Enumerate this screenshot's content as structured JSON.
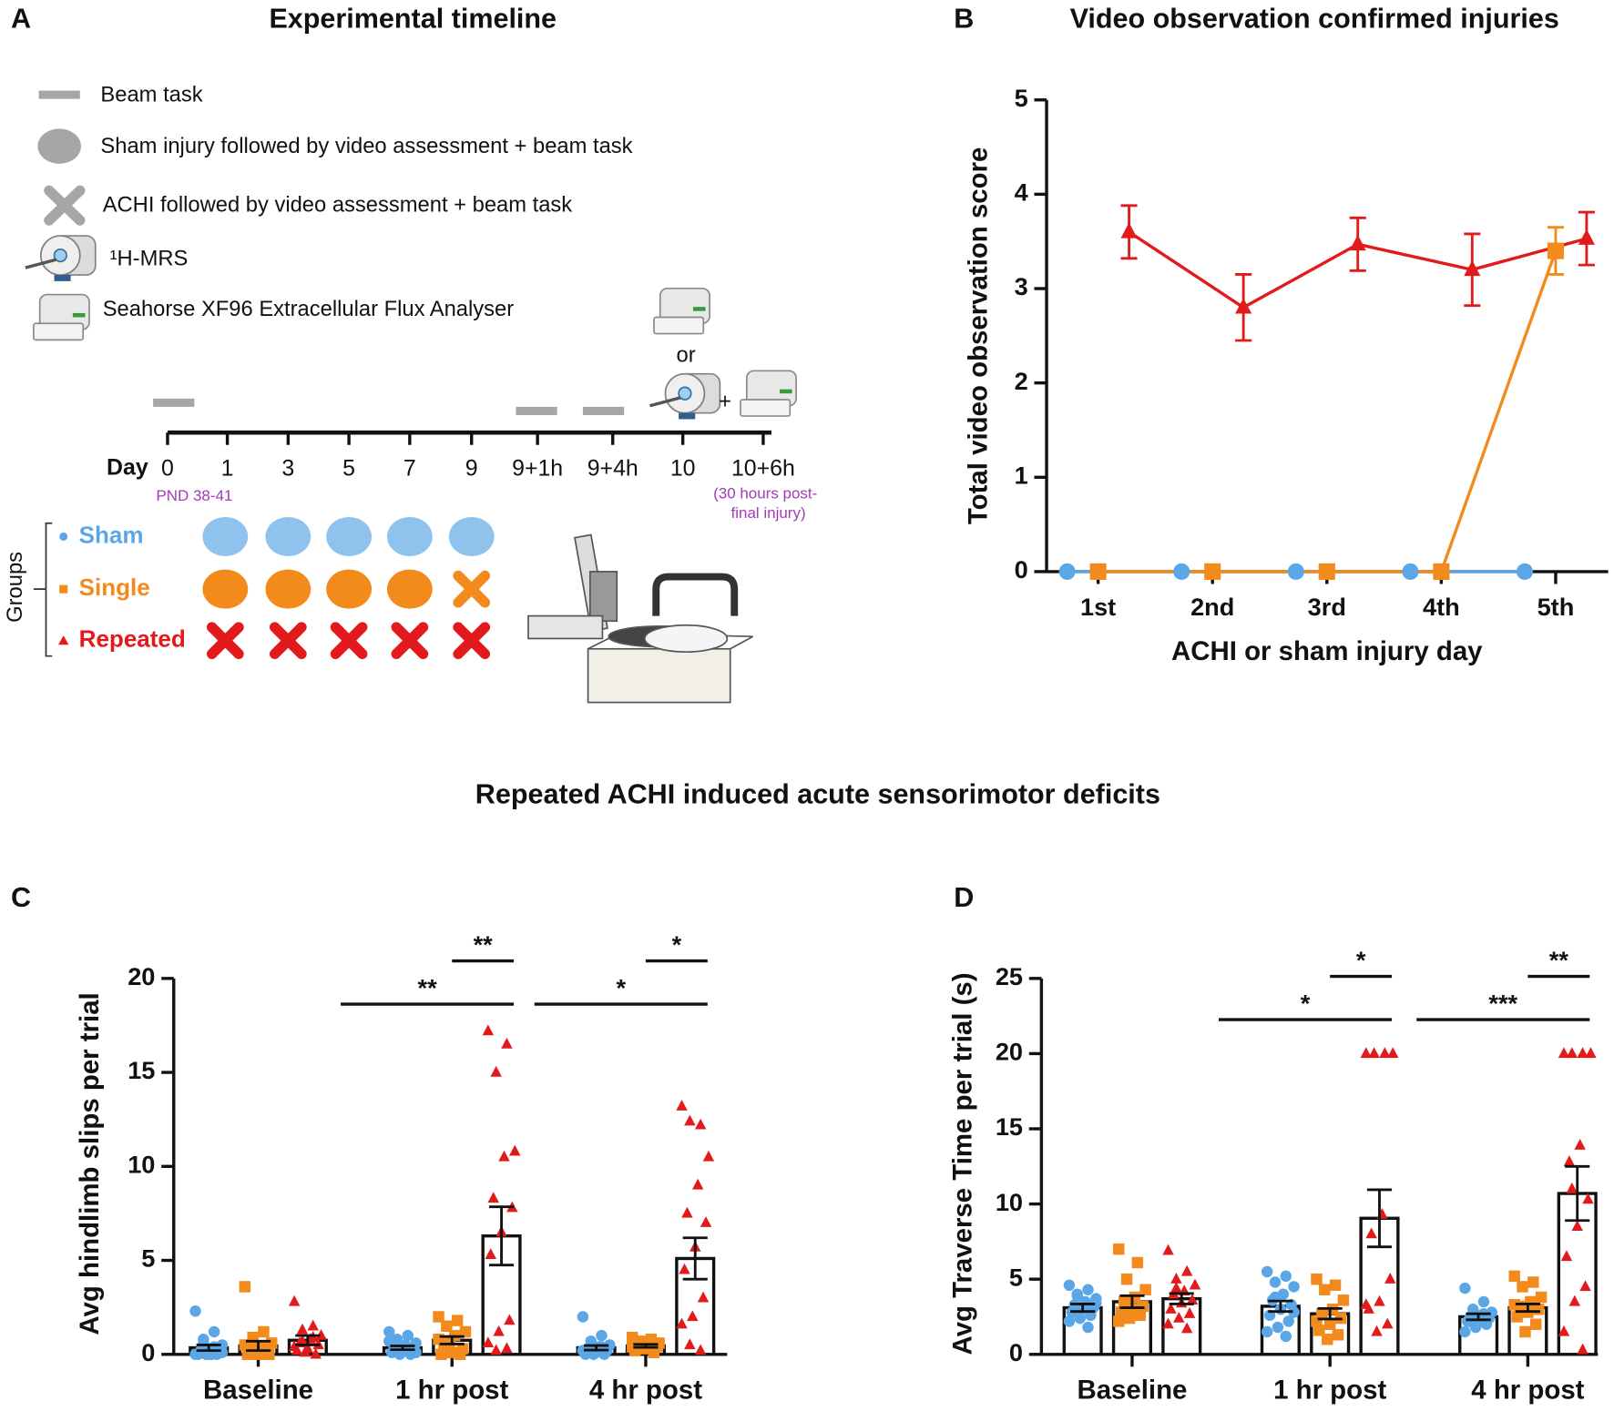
{
  "panel_a": {
    "panel": "A",
    "title": "Experimental timeline",
    "legend": [
      "Beam task",
      "Sham injury followed by video assessment + beam task",
      "ACHI followed by video assessment + beam task",
      "¹H-MRS",
      "Seahorse XF96 Extracellular Flux Analyser"
    ],
    "or": "or",
    "plus": "+",
    "day_label": "Day",
    "days": [
      "0",
      "1",
      "3",
      "5",
      "7",
      "9",
      "9+1h",
      "9+4h",
      "10",
      "10+6h"
    ],
    "day0_note": "PND 38-41",
    "final_note": [
      "(30 hours post-",
      "final injury)"
    ],
    "groups_label": "Groups",
    "groups": [
      {
        "name": "Sham",
        "color": "#5ba6e6"
      },
      {
        "name": "Single",
        "color": "#f28a1c"
      },
      {
        "name": "Repeated",
        "color": "#e31a1c"
      }
    ]
  },
  "section_title": "Repeated ACHI induced acute sensorimotor deficits",
  "chart_data": [
    {
      "type": "line",
      "panel": "B",
      "title": "Video observation confirmed injuries",
      "x_label": "ACHI or sham injury day",
      "y_label": "Total  video observation score",
      "categories": [
        "1st",
        "2nd",
        "3rd",
        "4th",
        "5th"
      ],
      "ylim": [
        0,
        5
      ],
      "yticks": [
        0,
        1,
        2,
        3,
        4,
        5
      ],
      "series": [
        {
          "color": "#5ba6e6",
          "marker": "circle",
          "values": [
            0,
            0,
            0,
            0,
            0
          ],
          "errors": [
            0,
            0,
            0,
            0,
            0
          ]
        },
        {
          "color": "#f28a1c",
          "marker": "square",
          "values": [
            0,
            0,
            0,
            0,
            3.4
          ],
          "errors": [
            0,
            0,
            0,
            0,
            0.25
          ]
        },
        {
          "color": "#e31a1c",
          "marker": "triangle",
          "values": [
            3.6,
            2.8,
            3.47,
            3.2,
            3.53
          ],
          "errors": [
            0.28,
            0.35,
            0.28,
            0.38,
            0.28
          ]
        }
      ]
    },
    {
      "type": "bar",
      "panel": "C",
      "y_label": "Avg hindlimb slips per trial",
      "categories": [
        "Baseline",
        "1 hr post",
        "4 hr post"
      ],
      "ylim": [
        0,
        20
      ],
      "yticks": [
        0,
        5,
        10,
        15,
        20
      ],
      "series": [
        {
          "color": "#5ba6e6",
          "marker": "circle",
          "values": [
            0.35,
            0.35,
            0.35
          ],
          "errors": [
            0.15,
            0.1,
            0.12
          ],
          "points": [
            [
              2.3,
              1.2,
              0.8,
              0.5,
              0.3,
              0.2,
              0.1,
              0,
              0,
              0,
              0,
              0,
              0.4,
              0.6,
              0.1,
              0
            ],
            [
              1.2,
              1.0,
              0.8,
              0.6,
              0.5,
              0.4,
              0.3,
              0.2,
              0.1,
              0,
              0,
              0.7,
              0.3,
              0.2,
              0.1
            ],
            [
              2.0,
              1.0,
              0.7,
              0.5,
              0.4,
              0.3,
              0.2,
              0.1,
              0,
              0,
              0,
              0.2,
              0.4,
              0.1
            ]
          ]
        },
        {
          "color": "#f28a1c",
          "marker": "square",
          "values": [
            0.45,
            0.75,
            0.45
          ],
          "errors": [
            0.25,
            0.2,
            0.08
          ],
          "points": [
            [
              3.6,
              1.2,
              0.9,
              0.6,
              0.4,
              0.2,
              0,
              0,
              0,
              0.1,
              0.3,
              0.5
            ],
            [
              2.0,
              1.8,
              1.5,
              1.2,
              1.0,
              0.6,
              0.3,
              0.1,
              0,
              0,
              0.5,
              0.8
            ],
            [
              0.9,
              0.8,
              0.7,
              0.6,
              0.5,
              0.5,
              0.4,
              0.3,
              0.2,
              0.1,
              0.6,
              0.4
            ]
          ]
        },
        {
          "color": "#e31a1c",
          "marker": "triangle",
          "values": [
            0.75,
            6.3,
            5.1
          ],
          "errors": [
            0.25,
            1.55,
            1.1
          ],
          "points": [
            [
              2.8,
              1.5,
              1.3,
              1.0,
              0.8,
              0.6,
              0.5,
              0.3,
              0.2,
              0,
              0.1,
              0.4,
              0.9,
              0.7
            ],
            [
              17.2,
              16.5,
              15.0,
              10.8,
              10.5,
              8.3,
              7.8,
              6.5,
              5.3,
              1.8,
              1.2,
              0.6,
              0.3,
              0.2
            ],
            [
              13.2,
              12.2,
              12.4,
              10.5,
              9.0,
              7.5,
              7.0,
              5.7,
              4.5,
              3.0,
              2.0,
              1.6,
              0.2,
              0.5
            ]
          ]
        }
      ],
      "annotations": [
        {
          "text": "**",
          "group": 1,
          "from": 1,
          "to": 2
        },
        {
          "text": "**",
          "group": 1,
          "from": 0,
          "to": 2
        },
        {
          "text": "*",
          "group": 2,
          "from": 1,
          "to": 2
        },
        {
          "text": "*",
          "group": 2,
          "from": 0,
          "to": 2
        }
      ]
    },
    {
      "type": "bar",
      "panel": "D",
      "y_label": "Avg Traverse Time per trial (s)",
      "categories": [
        "Baseline",
        "1 hr post",
        "4 hr post"
      ],
      "ylim": [
        0,
        25
      ],
      "yticks": [
        0,
        5,
        10,
        15,
        20,
        25
      ],
      "series": [
        {
          "color": "#5ba6e6",
          "marker": "circle",
          "values": [
            3.1,
            3.2,
            2.5
          ],
          "errors": [
            0.25,
            0.35,
            0.2
          ],
          "points": [
            [
              4.6,
              4.3,
              4.0,
              3.7,
              3.5,
              3.3,
              3.1,
              3.0,
              2.8,
              2.6,
              2.4,
              2.2,
              1.8,
              3.9,
              3.4
            ],
            [
              5.5,
              5.2,
              4.8,
              4.5,
              4.0,
              3.6,
              3.3,
              3.0,
              2.6,
              2.2,
              1.8,
              1.5,
              1.2,
              3.8,
              2.8
            ],
            [
              4.4,
              3.5,
              3.0,
              2.8,
              2.6,
              2.5,
              2.4,
              2.3,
              2.2,
              2.0,
              1.8,
              1.5,
              2.7,
              2.1
            ]
          ]
        },
        {
          "color": "#f28a1c",
          "marker": "square",
          "values": [
            3.5,
            2.7,
            3.1
          ],
          "errors": [
            0.4,
            0.35,
            0.25
          ],
          "points": [
            [
              7.0,
              6.1,
              5.0,
              4.3,
              3.8,
              3.5,
              3.2,
              3.0,
              2.8,
              2.6,
              2.4,
              2.2
            ],
            [
              5.0,
              4.6,
              4.3,
              3.6,
              3.0,
              2.7,
              2.4,
              2.0,
              1.6,
              1.3,
              1.0,
              2.2
            ],
            [
              5.2,
              4.8,
              4.5,
              3.8,
              3.5,
              3.2,
              3.0,
              2.8,
              2.5,
              2.0,
              1.5,
              3.3
            ]
          ]
        },
        {
          "color": "#e31a1c",
          "marker": "triangle",
          "values": [
            3.7,
            9.05,
            10.7
          ],
          "errors": [
            0.35,
            1.9,
            1.8
          ],
          "points": [
            [
              6.9,
              5.5,
              5.0,
              4.6,
              4.2,
              4.0,
              3.6,
              3.4,
              3.0,
              2.7,
              2.4,
              2.0,
              1.7,
              4.4
            ],
            [
              20,
              20,
              20,
              20,
              9.3,
              8.0,
              5.0,
              3.5,
              3.0,
              2.0,
              1.5,
              3.3
            ],
            [
              20,
              20,
              20,
              20,
              13.9,
              12.8,
              10.3,
              8.5,
              6.5,
              4.5,
              3.5,
              1.5,
              0.3,
              11
            ]
          ]
        }
      ],
      "annotations": [
        {
          "text": "*",
          "group": 1,
          "from": 1,
          "to": 2
        },
        {
          "text": "*",
          "group": 1,
          "from": 0,
          "to": 2
        },
        {
          "text": "**",
          "group": 2,
          "from": 1,
          "to": 2
        },
        {
          "text": "***",
          "group": 2,
          "from": 0,
          "to": 2
        }
      ]
    }
  ]
}
